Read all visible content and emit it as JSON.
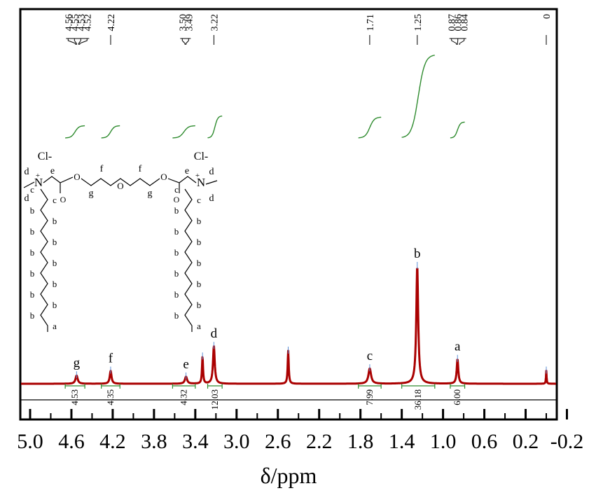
{
  "chart_data": {
    "type": "line",
    "title": "",
    "xlabel": "δ/ppm",
    "ylabel": "",
    "x_reversed": true,
    "xlim": [
      5.2,
      -0.2
    ],
    "tick_labels": [
      "5.0",
      "4.6",
      "4.2",
      "3.8",
      "3.4",
      "3.0",
      "2.6",
      "2.2",
      "1.8",
      "1.4",
      "1.0",
      "0.6",
      "0.2",
      "-0.2"
    ],
    "tick_values": [
      5.0,
      4.6,
      4.2,
      3.8,
      3.4,
      3.0,
      2.6,
      2.2,
      1.8,
      1.4,
      1.0,
      0.6,
      0.2,
      -0.2
    ],
    "minor_ticks": [
      5.2,
      4.8,
      4.4,
      4.0,
      3.6,
      3.2,
      2.8,
      2.4,
      2.0,
      1.6,
      1.2,
      0.8,
      0.4,
      0.0
    ],
    "peak_list": [
      {
        "values": [
          "4.56",
          "4.55",
          "4.53",
          "4.52"
        ],
        "positions": [
          4.56,
          4.55,
          4.53,
          4.52
        ]
      },
      {
        "values": [
          "4.22"
        ],
        "positions": [
          4.22
        ]
      },
      {
        "values": [
          "3.50",
          "3.49"
        ],
        "positions": [
          3.5,
          3.49
        ]
      },
      {
        "values": [
          "3.22"
        ],
        "positions": [
          3.22
        ]
      },
      {
        "values": [
          "1.71"
        ],
        "positions": [
          1.71
        ]
      },
      {
        "values": [
          "1.25"
        ],
        "positions": [
          1.25
        ]
      },
      {
        "values": [
          "0.87",
          "0.86",
          "0.84"
        ],
        "positions": [
          0.87,
          0.86,
          0.84
        ]
      },
      {
        "values": [
          "0"
        ],
        "positions": [
          0.0
        ]
      }
    ],
    "peaks": [
      {
        "shift": 4.55,
        "height": 0.07,
        "width": 0.025
      },
      {
        "shift": 4.22,
        "height": 0.11,
        "width": 0.02
      },
      {
        "shift": 3.49,
        "height": 0.06,
        "width": 0.025
      },
      {
        "shift": 3.33,
        "height": 0.23,
        "width": 0.012
      },
      {
        "shift": 3.22,
        "height": 0.32,
        "width": 0.02
      },
      {
        "shift": 2.5,
        "height": 0.28,
        "width": 0.012
      },
      {
        "shift": 1.71,
        "height": 0.13,
        "width": 0.03
      },
      {
        "shift": 1.25,
        "height": 1.0,
        "width": 0.022
      },
      {
        "shift": 0.86,
        "height": 0.21,
        "width": 0.018
      },
      {
        "shift": 0.0,
        "height": 0.11,
        "width": 0.007
      }
    ],
    "peak_labels": [
      {
        "text": "g",
        "shift": 4.55
      },
      {
        "text": "f",
        "shift": 4.22
      },
      {
        "text": "e",
        "shift": 3.49
      },
      {
        "text": "d",
        "shift": 3.22
      },
      {
        "text": "c",
        "shift": 1.71
      },
      {
        "text": "b",
        "shift": 1.25
      },
      {
        "text": "a",
        "shift": 0.86
      }
    ],
    "integrals": [
      {
        "label": "4.53",
        "from": 4.66,
        "to": 4.47,
        "step": 0.1
      },
      {
        "label": "4.35",
        "from": 4.31,
        "to": 4.13,
        "step": 0.1
      },
      {
        "label": "4.32",
        "from": 3.62,
        "to": 3.4,
        "step": 0.1
      },
      {
        "label": "12.03",
        "from": 3.28,
        "to": 3.14,
        "step": 0.18
      },
      {
        "label": "7.99",
        "from": 1.82,
        "to": 1.6,
        "step": 0.17
      },
      {
        "label": "36.18",
        "from": 1.4,
        "to": 1.08,
        "step": 0.68
      },
      {
        "label": "6.00",
        "from": 0.93,
        "to": 0.79,
        "step": 0.13
      }
    ],
    "structure": {
      "counterion": "Cl-",
      "plus": "+",
      "nitrogen": "N",
      "oxygen": "O",
      "carbonyl_o": "O",
      "labels": {
        "a": "a",
        "b": "b",
        "c": "c",
        "d": "d",
        "e": "e",
        "f": "f",
        "g": "g"
      }
    },
    "colors": {
      "spectrum": "#aa0000",
      "integral": "#2e8b2e",
      "frame": "#000000"
    }
  }
}
